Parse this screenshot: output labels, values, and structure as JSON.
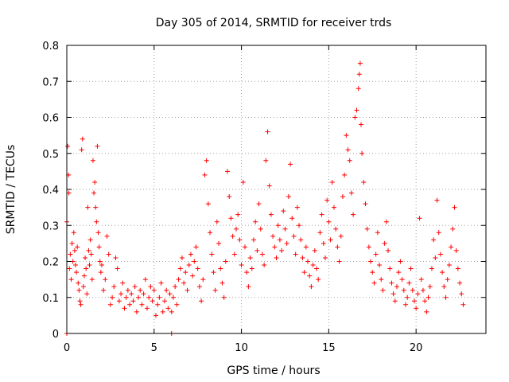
{
  "chart_data": {
    "type": "scatter",
    "title": "Day 305 of 2014, SRMTID for receiver trds",
    "xlabel": "GPS time / hours",
    "ylabel": "SRMTID / TECUs",
    "xlim": [
      0,
      24
    ],
    "ylim": [
      0,
      0.8
    ],
    "xticks": [
      0,
      5,
      10,
      15,
      20
    ],
    "xtick_labels": [
      "0",
      "5",
      "10",
      "15",
      "20"
    ],
    "yticks": [
      0,
      0.1,
      0.2,
      0.3,
      0.4,
      0.5,
      0.6,
      0.7,
      0.8
    ],
    "ytick_labels": [
      "0",
      "0.1",
      "0.2",
      "0.3",
      "0.4",
      "0.5",
      "0.6",
      "0.7",
      "0.8"
    ],
    "grid": true,
    "marker": "plus",
    "color": "#ff0000",
    "series": [
      {
        "name": "SRMTID",
        "x": [
          0.0,
          0.0,
          0.05,
          0.1,
          0.12,
          0.15,
          0.2,
          0.25,
          0.3,
          0.35,
          0.4,
          0.45,
          0.5,
          0.55,
          0.6,
          0.65,
          0.7,
          0.75,
          0.8,
          0.85,
          0.9,
          0.95,
          1.0,
          1.05,
          1.1,
          1.15,
          1.2,
          1.25,
          1.3,
          1.35,
          1.4,
          1.45,
          1.5,
          1.55,
          1.6,
          1.65,
          1.7,
          1.75,
          1.8,
          1.85,
          1.9,
          1.95,
          2.0,
          2.1,
          2.2,
          2.3,
          2.4,
          2.5,
          2.6,
          2.7,
          2.8,
          2.9,
          3.0,
          3.1,
          3.2,
          3.3,
          3.4,
          3.5,
          3.6,
          3.7,
          3.8,
          3.9,
          4.0,
          4.1,
          4.2,
          4.3,
          4.4,
          4.5,
          4.6,
          4.7,
          4.8,
          4.9,
          5.0,
          5.1,
          5.2,
          5.3,
          5.4,
          5.5,
          5.6,
          5.7,
          5.8,
          5.9,
          6.0,
          6.0,
          6.1,
          6.2,
          6.3,
          6.4,
          6.5,
          6.6,
          6.7,
          6.8,
          6.9,
          7.0,
          7.1,
          7.2,
          7.3,
          7.4,
          7.5,
          7.6,
          7.7,
          7.8,
          7.9,
          8.0,
          8.1,
          8.2,
          8.3,
          8.4,
          8.5,
          8.6,
          8.7,
          8.8,
          8.9,
          9.0,
          9.1,
          9.2,
          9.3,
          9.4,
          9.5,
          9.6,
          9.7,
          9.8,
          9.9,
          10.0,
          10.1,
          10.2,
          10.3,
          10.4,
          10.5,
          10.6,
          10.7,
          10.8,
          10.9,
          11.0,
          11.1,
          11.2,
          11.3,
          11.4,
          11.5,
          11.6,
          11.7,
          11.8,
          11.9,
          12.0,
          12.1,
          12.2,
          12.3,
          12.4,
          12.5,
          12.6,
          12.7,
          12.8,
          12.9,
          13.0,
          13.1,
          13.2,
          13.3,
          13.4,
          13.5,
          13.6,
          13.7,
          13.8,
          13.9,
          14.0,
          14.1,
          14.2,
          14.3,
          14.4,
          14.5,
          14.6,
          14.7,
          14.8,
          14.9,
          15.0,
          15.1,
          15.2,
          15.3,
          15.4,
          15.5,
          15.6,
          15.7,
          15.8,
          15.9,
          16.0,
          16.1,
          16.2,
          16.3,
          16.4,
          16.5,
          16.6,
          16.7,
          16.75,
          16.8,
          16.85,
          16.9,
          17.0,
          17.1,
          17.2,
          17.3,
          17.4,
          17.5,
          17.6,
          17.7,
          17.8,
          17.9,
          18.0,
          18.1,
          18.2,
          18.3,
          18.4,
          18.5,
          18.6,
          18.7,
          18.8,
          18.9,
          19.0,
          19.1,
          19.2,
          19.3,
          19.4,
          19.5,
          19.6,
          19.7,
          19.8,
          19.9,
          20.0,
          20.1,
          20.2,
          20.3,
          20.4,
          20.5,
          20.6,
          20.7,
          20.8,
          20.9,
          21.0,
          21.1,
          21.2,
          21.3,
          21.4,
          21.5,
          21.6,
          21.7,
          21.8,
          21.9,
          22.0,
          22.1,
          22.2,
          22.3,
          22.4,
          22.5,
          22.6,
          22.7
        ],
        "y": [
          0.0,
          0.31,
          0.52,
          0.44,
          0.39,
          0.18,
          0.22,
          0.15,
          0.25,
          0.2,
          0.28,
          0.23,
          0.19,
          0.17,
          0.24,
          0.14,
          0.12,
          0.09,
          0.08,
          0.51,
          0.54,
          0.13,
          0.16,
          0.21,
          0.18,
          0.11,
          0.35,
          0.23,
          0.19,
          0.26,
          0.22,
          0.15,
          0.48,
          0.39,
          0.42,
          0.35,
          0.31,
          0.52,
          0.28,
          0.24,
          0.2,
          0.17,
          0.19,
          0.12,
          0.15,
          0.27,
          0.22,
          0.08,
          0.1,
          0.13,
          0.21,
          0.18,
          0.09,
          0.11,
          0.14,
          0.07,
          0.1,
          0.12,
          0.08,
          0.11,
          0.09,
          0.13,
          0.06,
          0.1,
          0.12,
          0.08,
          0.11,
          0.15,
          0.07,
          0.1,
          0.13,
          0.09,
          0.12,
          0.05,
          0.08,
          0.1,
          0.14,
          0.06,
          0.09,
          0.12,
          0.07,
          0.11,
          0.0,
          0.06,
          0.1,
          0.13,
          0.08,
          0.15,
          0.18,
          0.21,
          0.14,
          0.17,
          0.12,
          0.19,
          0.22,
          0.16,
          0.2,
          0.24,
          0.18,
          0.13,
          0.09,
          0.15,
          0.44,
          0.48,
          0.36,
          0.28,
          0.22,
          0.17,
          0.12,
          0.31,
          0.25,
          0.18,
          0.14,
          0.1,
          0.2,
          0.45,
          0.38,
          0.32,
          0.27,
          0.22,
          0.29,
          0.33,
          0.26,
          0.19,
          0.42,
          0.24,
          0.17,
          0.13,
          0.21,
          0.18,
          0.26,
          0.31,
          0.23,
          0.36,
          0.29,
          0.22,
          0.19,
          0.48,
          0.56,
          0.41,
          0.33,
          0.27,
          0.24,
          0.21,
          0.3,
          0.26,
          0.23,
          0.34,
          0.29,
          0.25,
          0.38,
          0.47,
          0.32,
          0.27,
          0.22,
          0.35,
          0.3,
          0.26,
          0.21,
          0.17,
          0.24,
          0.2,
          0.16,
          0.13,
          0.19,
          0.23,
          0.18,
          0.15,
          0.28,
          0.33,
          0.25,
          0.21,
          0.37,
          0.31,
          0.26,
          0.42,
          0.35,
          0.29,
          0.24,
          0.2,
          0.27,
          0.38,
          0.44,
          0.55,
          0.51,
          0.48,
          0.39,
          0.33,
          0.6,
          0.62,
          0.68,
          0.72,
          0.75,
          0.58,
          0.5,
          0.42,
          0.36,
          0.29,
          0.24,
          0.2,
          0.17,
          0.14,
          0.22,
          0.28,
          0.19,
          0.15,
          0.12,
          0.25,
          0.31,
          0.23,
          0.18,
          0.14,
          0.11,
          0.09,
          0.13,
          0.17,
          0.2,
          0.15,
          0.12,
          0.08,
          0.1,
          0.14,
          0.18,
          0.12,
          0.09,
          0.07,
          0.11,
          0.32,
          0.15,
          0.12,
          0.09,
          0.06,
          0.1,
          0.13,
          0.18,
          0.26,
          0.21,
          0.37,
          0.28,
          0.22,
          0.17,
          0.13,
          0.1,
          0.15,
          0.19,
          0.24,
          0.29,
          0.35,
          0.23,
          0.18,
          0.14,
          0.11,
          0.08
        ]
      }
    ]
  }
}
